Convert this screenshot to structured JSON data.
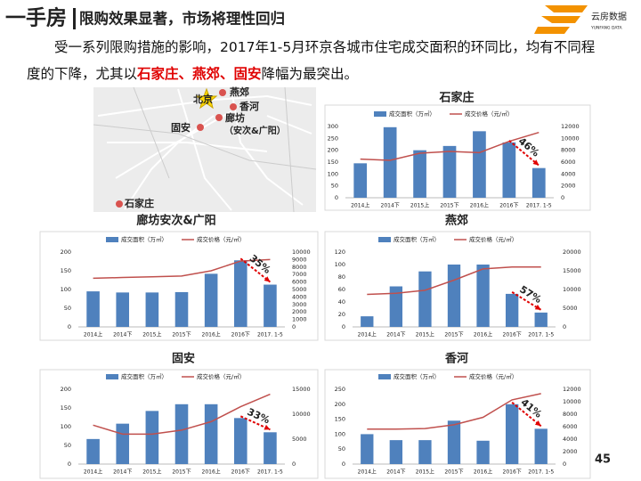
{
  "header": {
    "title_main": "一手房",
    "title_sub": "限购效果显著，市场将理性回归",
    "logo": "云房数据",
    "logo_en": "YUNFANG DATA"
  },
  "body": {
    "text_before": "受一系列限购措施的影响，2017年1-5月环京各城市住宅成交面积的环同比，均有不同程度的下降，尤其以",
    "text_highlight": "石家庄、燕郊、固安",
    "text_after": "降幅为最突出。"
  },
  "map": {
    "labels": [
      "北京",
      "燕郊",
      "香河",
      "廊坊",
      "（安次&广阳）",
      "固安",
      "石家庄"
    ]
  },
  "page_number": 45,
  "chart_data": [
    {
      "type": "combo",
      "title": "石家庄",
      "categories": [
        "2014上",
        "2014下",
        "2015上",
        "2015下",
        "2016上",
        "2016下",
        "2017. 1-5"
      ],
      "series": [
        {
          "name": "成交面积（万㎡）",
          "color": "#4f81bd",
          "values": [
            145,
            297,
            200,
            218,
            280,
            233,
            125
          ]
        },
        {
          "name": "成交价格（元/㎡）",
          "color": "#c0504d",
          "axis": "y2",
          "values": [
            6500,
            6300,
            7500,
            7800,
            7600,
            9500,
            11000
          ]
        }
      ],
      "ylim": [
        0,
        300
      ],
      "yticks": [
        0,
        50,
        100,
        150,
        200,
        250,
        300
      ],
      "y2lim": [
        0,
        12000
      ],
      "y2ticks": [
        0,
        2000,
        4000,
        6000,
        8000,
        10000,
        12000
      ],
      "annotation": "46%",
      "grid": false
    },
    {
      "type": "combo",
      "title": "廊坊安次&广阳",
      "categories": [
        "2014上",
        "2014下",
        "2015上",
        "2015下",
        "2016上",
        "2016下",
        "2017. 1-5"
      ],
      "series": [
        {
          "name": "成交面积（万㎡）",
          "color": "#4f81bd",
          "values": [
            95,
            92,
            92,
            93,
            142,
            178,
            113
          ]
        },
        {
          "name": "成交价格（元/㎡）",
          "color": "#c0504d",
          "axis": "y2",
          "values": [
            6500,
            6600,
            6700,
            6800,
            7500,
            8800,
            9000
          ]
        }
      ],
      "ylim": [
        0,
        200
      ],
      "yticks": [
        0,
        50,
        100,
        150,
        200
      ],
      "y2lim": [
        0,
        10000
      ],
      "y2ticks": [
        0,
        1000,
        2000,
        3000,
        4000,
        5000,
        6000,
        7000,
        8000,
        9000,
        10000
      ],
      "annotation": "35%",
      "grid": false
    },
    {
      "type": "combo",
      "title": "燕郊",
      "categories": [
        "2014上",
        "2014下",
        "2015上",
        "2015下",
        "2016上",
        "2016下",
        "2017. 1-5"
      ],
      "series": [
        {
          "name": "成交面积（万㎡）",
          "color": "#4f81bd",
          "values": [
            17,
            65,
            89,
            100,
            100,
            53,
            23
          ]
        },
        {
          "name": "成交价格（元/㎡）",
          "color": "#c0504d",
          "axis": "y2",
          "values": [
            8700,
            9000,
            9800,
            12500,
            15500,
            16000,
            16000
          ]
        }
      ],
      "ylim": [
        0,
        120
      ],
      "yticks": [
        0,
        20,
        40,
        60,
        80,
        100,
        120
      ],
      "y2lim": [
        0,
        20000
      ],
      "y2ticks": [
        0,
        5000,
        10000,
        15000,
        20000
      ],
      "annotation": "57%",
      "grid": false
    },
    {
      "type": "combo",
      "title": "固安",
      "categories": [
        "2014上",
        "2014下",
        "2015上",
        "2015下",
        "2016上",
        "2016下",
        "2017. 1-5"
      ],
      "series": [
        {
          "name": "成交面积（万㎡）",
          "color": "#4f81bd",
          "values": [
            67,
            108,
            142,
            160,
            160,
            123,
            85
          ]
        },
        {
          "name": "成交价格（元/㎡）",
          "color": "#c0504d",
          "axis": "y2",
          "values": [
            7800,
            6000,
            6000,
            6800,
            8500,
            11500,
            14000
          ]
        }
      ],
      "ylim": [
        0,
        200
      ],
      "yticks": [
        0,
        50,
        100,
        150,
        200
      ],
      "y2lim": [
        0,
        15000
      ],
      "y2ticks": [
        0,
        5000,
        10000,
        15000
      ],
      "annotation": "33%",
      "grid": false
    },
    {
      "type": "combo",
      "title": "香河",
      "categories": [
        "2014上",
        "2014下",
        "2015上",
        "2015下",
        "2016上",
        "2016下",
        "2017. 1-5"
      ],
      "series": [
        {
          "name": "成交面积（万㎡）",
          "color": "#4f81bd",
          "values": [
            100,
            80,
            80,
            145,
            78,
            200,
            118
          ]
        },
        {
          "name": "成交价格（元/㎡）",
          "color": "#c0504d",
          "axis": "y2",
          "values": [
            5600,
            5600,
            5700,
            6300,
            7500,
            10300,
            11300
          ]
        }
      ],
      "ylim": [
        0,
        250
      ],
      "yticks": [
        0,
        50,
        100,
        150,
        200,
        250
      ],
      "y2lim": [
        0,
        12000
      ],
      "y2ticks": [
        0,
        2000,
        4000,
        6000,
        8000,
        10000,
        12000
      ],
      "annotation": "41%",
      "grid": false
    }
  ]
}
